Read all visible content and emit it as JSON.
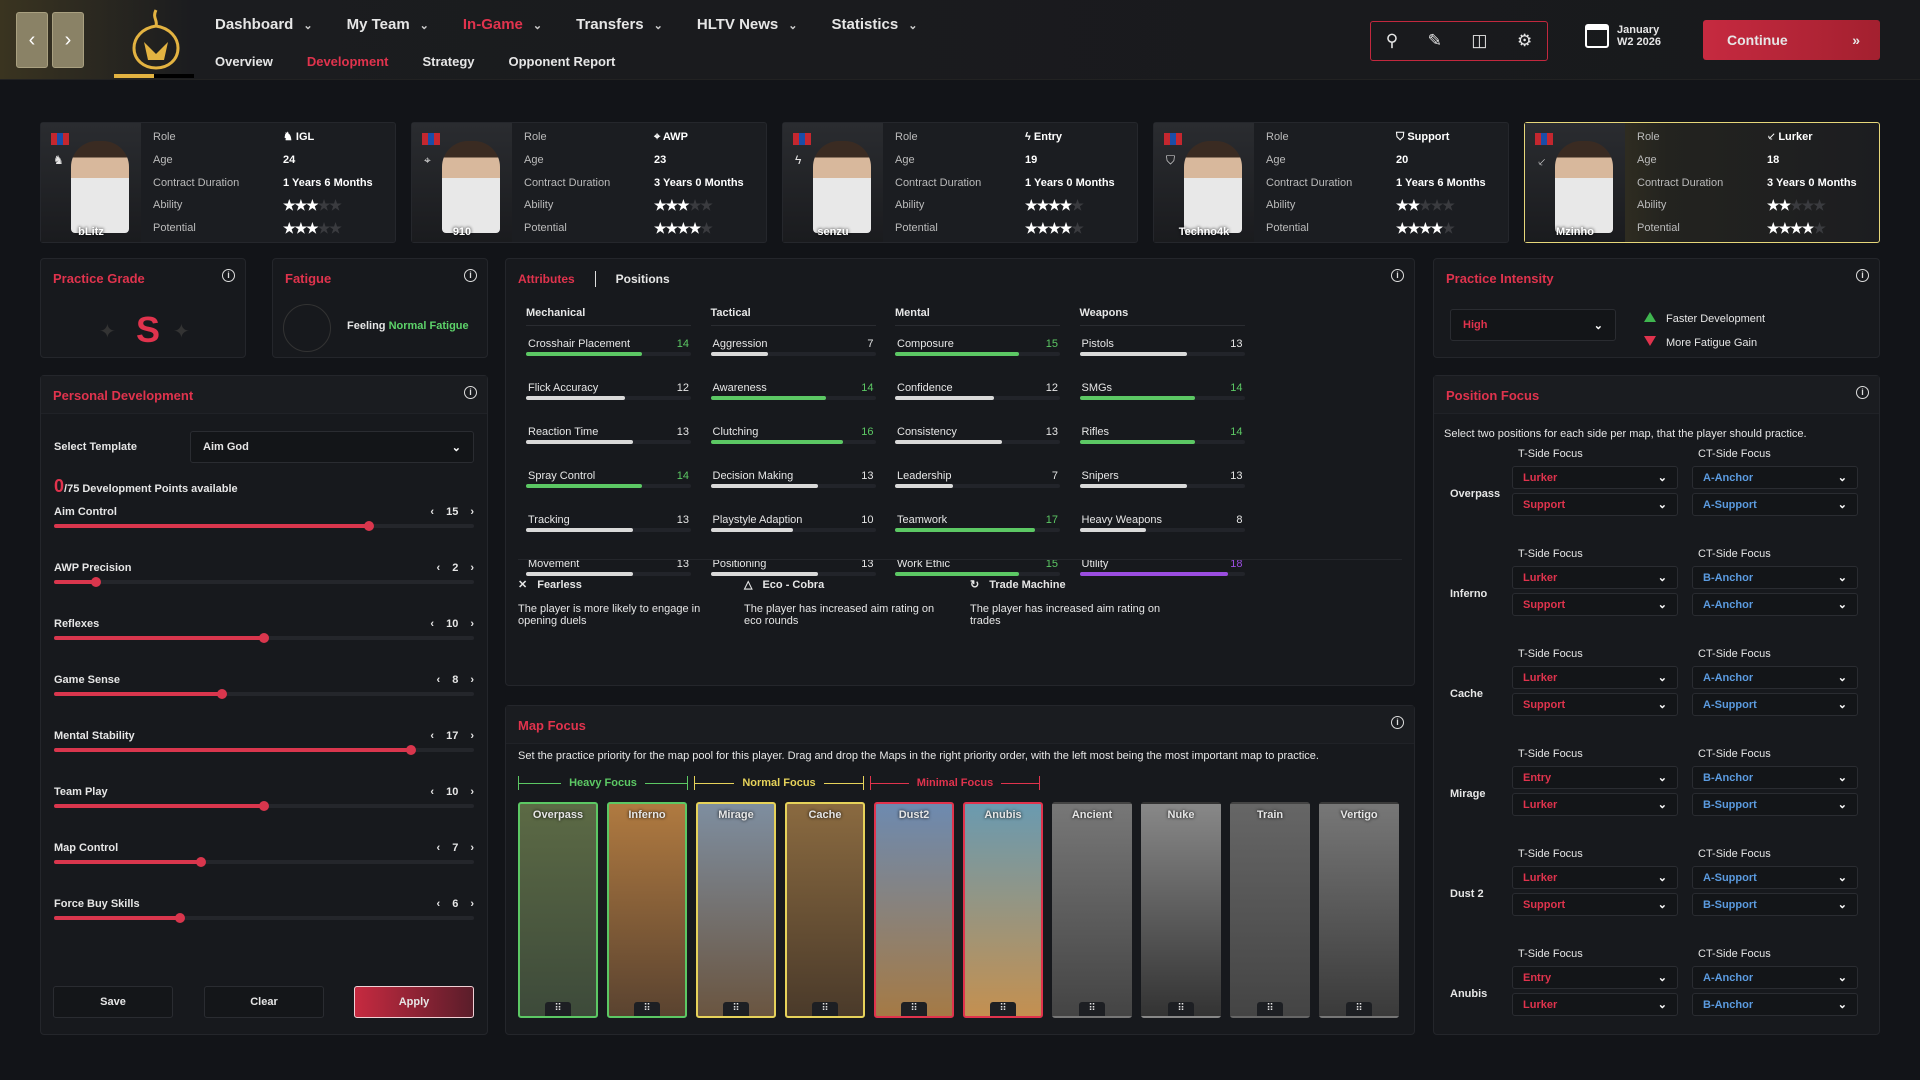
{
  "header": {
    "nav": [
      {
        "label": "Dashboard",
        "active": false
      },
      {
        "label": "My Team",
        "active": false
      },
      {
        "label": "In-Game",
        "active": true
      },
      {
        "label": "Transfers",
        "active": false
      },
      {
        "label": "HLTV News",
        "active": false
      },
      {
        "label": "Statistics",
        "active": false
      }
    ],
    "subnav": [
      {
        "label": "Overview",
        "active": false
      },
      {
        "label": "Development",
        "active": true
      },
      {
        "label": "Strategy",
        "active": false
      },
      {
        "label": "Opponent Report",
        "active": false
      }
    ],
    "icons": [
      "search-icon",
      "edit-icon",
      "compare-icon",
      "gear-icon"
    ],
    "date_month": "January",
    "date_week": "W2 2026",
    "continue_label": "Continue"
  },
  "players": {
    "labels": {
      "role": "Role",
      "age": "Age",
      "contract": "Contract Duration",
      "ability": "Ability",
      "potential": "Potential"
    },
    "list": [
      {
        "name": "bLitz",
        "role": "IGL",
        "role_icon": "chess-knight-icon",
        "age": "24",
        "contract": "1 Years 6 Months",
        "ability": 3,
        "potential": 3,
        "selected": false
      },
      {
        "name": "910",
        "role": "AWP",
        "role_icon": "crosshair-icon",
        "age": "23",
        "contract": "3 Years 0 Months",
        "ability": 3,
        "potential": 4,
        "selected": false
      },
      {
        "name": "senzu",
        "role": "Entry",
        "role_icon": "lightning-icon",
        "age": "19",
        "contract": "1 Years 0 Months",
        "ability": 4,
        "potential": 4,
        "selected": false
      },
      {
        "name": "Techno4k",
        "role": "Support",
        "role_icon": "shield-icon",
        "age": "20",
        "contract": "1 Years 6 Months",
        "ability": 2,
        "potential": 4,
        "selected": false
      },
      {
        "name": "Mzinho",
        "role": "Lurker",
        "role_icon": "knife-icon",
        "age": "18",
        "contract": "3 Years 0 Months",
        "ability": 2,
        "potential": 4,
        "selected": true
      }
    ],
    "star_max": 5
  },
  "practice_grade": {
    "title": "Practice Grade",
    "grade": "S"
  },
  "fatigue": {
    "title": "Fatigue",
    "prefix": "Feeling",
    "status": "Normal Fatigue"
  },
  "personal_development": {
    "title": "Personal Development",
    "template_label": "Select Template",
    "template_value": "Aim God",
    "points_used": "0",
    "points_text": "/75 Development Points available",
    "slider_max": 20,
    "sliders": [
      {
        "label": "Aim Control",
        "value": 15
      },
      {
        "label": "AWP Precision",
        "value": 2
      },
      {
        "label": "Reflexes",
        "value": 10
      },
      {
        "label": "Game Sense",
        "value": 8
      },
      {
        "label": "Mental Stability",
        "value": 17
      },
      {
        "label": "Team Play",
        "value": 10
      },
      {
        "label": "Map Control",
        "value": 7
      },
      {
        "label": "Force Buy Skills",
        "value": 6
      }
    ],
    "save_label": "Save",
    "clear_label": "Clear",
    "apply_label": "Apply"
  },
  "attributes": {
    "tab_attributes": "Attributes",
    "tab_positions": "Positions",
    "max": 20,
    "colors": {
      "high": "#5cc864",
      "normal": "#d9d9d9",
      "elite": "#9b4de0"
    },
    "groups": [
      {
        "name": "Mechanical",
        "items": [
          [
            "Crosshair Placement",
            14
          ],
          [
            "Flick Accuracy",
            12
          ],
          [
            "Reaction Time",
            13
          ],
          [
            "Spray Control",
            14
          ],
          [
            "Tracking",
            13
          ],
          [
            "Movement",
            13
          ]
        ]
      },
      {
        "name": "Tactical",
        "items": [
          [
            "Aggression",
            7
          ],
          [
            "Awareness",
            14
          ],
          [
            "Clutching",
            16
          ],
          [
            "Decision Making",
            13
          ],
          [
            "Playstyle Adaption",
            10
          ],
          [
            "Positioning",
            13
          ]
        ]
      },
      {
        "name": "Mental",
        "items": [
          [
            "Composure",
            15
          ],
          [
            "Confidence",
            12
          ],
          [
            "Consistency",
            13
          ],
          [
            "Leadership",
            7
          ],
          [
            "Teamwork",
            17
          ],
          [
            "Work Ethic",
            15
          ]
        ]
      },
      {
        "name": "Weapons",
        "items": [
          [
            "Pistols",
            13
          ],
          [
            "SMGs",
            14
          ],
          [
            "Rifles",
            14
          ],
          [
            "Snipers",
            13
          ],
          [
            "Heavy Weapons",
            8
          ],
          [
            "Utility",
            18
          ]
        ]
      }
    ],
    "traits": [
      {
        "name": "Fearless",
        "icon": "crossed-swords-icon",
        "desc": "The player is more likely to engage in opening duels"
      },
      {
        "name": "Eco - Cobra",
        "icon": "triangle-icon",
        "desc": "The player has increased aim rating on eco rounds"
      },
      {
        "name": "Trade Machine",
        "icon": "refresh-icon",
        "desc": "The player has increased aim rating on trades"
      }
    ]
  },
  "map_focus": {
    "title": "Map Focus",
    "description": "Set the practice priority for the map pool for this player. Drag and drop the Maps in the right priority order, with the left most being the most important map to practice.",
    "groups": [
      {
        "label": "Heavy Focus",
        "color": "#5cc864"
      },
      {
        "label": "Normal Focus",
        "color": "#e6d25a"
      },
      {
        "label": "Minimal Focus",
        "color": "#e0334d"
      }
    ],
    "maps": [
      {
        "name": "Overpass",
        "focus": "heavy"
      },
      {
        "name": "Inferno",
        "focus": "heavy"
      },
      {
        "name": "Mirage",
        "focus": "normal"
      },
      {
        "name": "Cache",
        "focus": "normal"
      },
      {
        "name": "Dust2",
        "focus": "minimal"
      },
      {
        "name": "Anubis",
        "focus": "minimal"
      },
      {
        "name": "Ancient",
        "focus": "none"
      },
      {
        "name": "Nuke",
        "focus": "none"
      },
      {
        "name": "Train",
        "focus": "none"
      },
      {
        "name": "Vertigo",
        "focus": "none"
      }
    ]
  },
  "practice_intensity": {
    "title": "Practice Intensity",
    "value": "High",
    "pro": "Faster Development",
    "con": "More Fatigue Gain"
  },
  "position_focus": {
    "title": "Position Focus",
    "description": "Select two positions for each side per map, that the player should practice.",
    "t_label": "T-Side Focus",
    "ct_label": "CT-Side Focus",
    "maps": [
      {
        "map": "Overpass",
        "t": [
          "Lurker",
          "Support"
        ],
        "ct": [
          "A-Anchor",
          "A-Support"
        ]
      },
      {
        "map": "Inferno",
        "t": [
          "Lurker",
          "Support"
        ],
        "ct": [
          "B-Anchor",
          "A-Anchor"
        ]
      },
      {
        "map": "Cache",
        "t": [
          "Lurker",
          "Support"
        ],
        "ct": [
          "A-Anchor",
          "A-Support"
        ]
      },
      {
        "map": "Mirage",
        "t": [
          "Entry",
          "Lurker"
        ],
        "ct": [
          "B-Anchor",
          "B-Support"
        ]
      },
      {
        "map": "Dust 2",
        "t": [
          "Lurker",
          "Support"
        ],
        "ct": [
          "A-Support",
          "B-Support"
        ]
      },
      {
        "map": "Anubis",
        "t": [
          "Entry",
          "Lurker"
        ],
        "ct": [
          "A-Anchor",
          "B-Anchor"
        ]
      }
    ]
  }
}
